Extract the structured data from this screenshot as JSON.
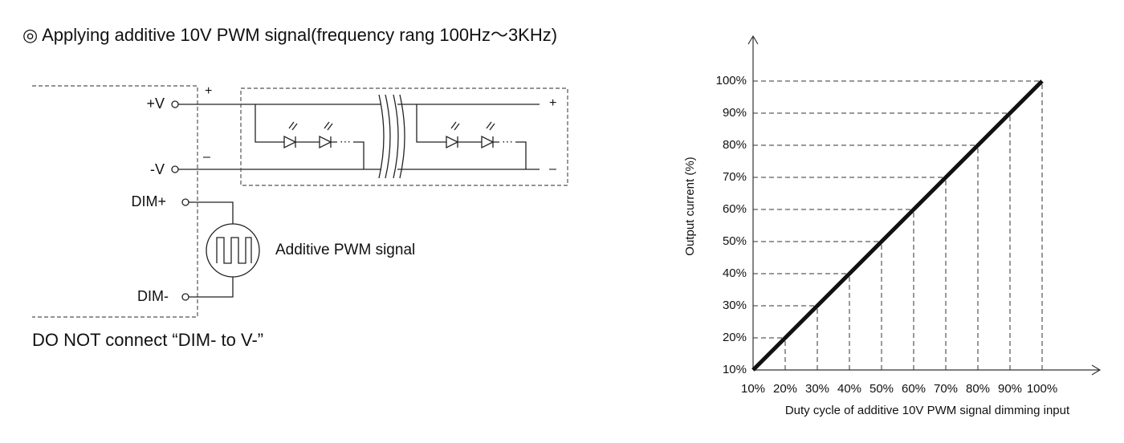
{
  "header": {
    "title": "◎  Applying additive 10V PWM signal(frequency rang 100Hz～3KHz)"
  },
  "diagram": {
    "terminals": [
      "+V",
      "-V",
      "DIM+",
      "DIM-"
    ],
    "polarity": [
      "+",
      "–",
      "+",
      "–"
    ],
    "signal_label": "Additive PWM signal"
  },
  "note": "DO NOT connect “DIM- to V-”",
  "chart_data": {
    "type": "line",
    "xlabel": "Duty cycle of additive 10V PWM signal dimming input",
    "ylabel": "Output current (%)",
    "x": [
      10,
      100
    ],
    "series": [
      {
        "color": "#111111",
        "values": [
          10,
          100
        ]
      }
    ],
    "xlim": [
      10,
      118
    ],
    "ylim": [
      10,
      114
    ],
    "xticks": [
      {
        "value": 10,
        "label": "10%"
      },
      {
        "value": 20,
        "label": "20%"
      },
      {
        "value": 30,
        "label": "30%"
      },
      {
        "value": 40,
        "label": "40%"
      },
      {
        "value": 50,
        "label": "50%"
      },
      {
        "value": 60,
        "label": "60%"
      },
      {
        "value": 70,
        "label": "70%"
      },
      {
        "value": 80,
        "label": "80%"
      },
      {
        "value": 90,
        "label": "90%"
      },
      {
        "value": 100,
        "label": "100%"
      }
    ],
    "yticks": [
      {
        "value": 10,
        "label": "10%"
      },
      {
        "value": 20,
        "label": "20%"
      },
      {
        "value": 30,
        "label": "30%"
      },
      {
        "value": 40,
        "label": "40%"
      },
      {
        "value": 50,
        "label": "50%"
      },
      {
        "value": 60,
        "label": "60%"
      },
      {
        "value": 70,
        "label": "70%"
      },
      {
        "value": 80,
        "label": "80%"
      },
      {
        "value": 90,
        "label": "90%"
      },
      {
        "value": 100,
        "label": "100%"
      }
    ],
    "grid": true
  }
}
